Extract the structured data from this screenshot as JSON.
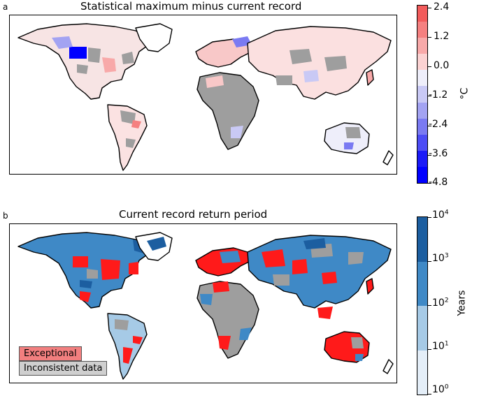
{
  "panel_a": {
    "letter": "a",
    "title": "Statistical maximum minus current record",
    "colorbar": {
      "label": "°C",
      "ticks": [
        "2.4",
        "1.2",
        "0.0",
        "-1.2",
        "-2.4",
        "-3.6",
        "-4.8"
      ],
      "colors": [
        "#f25b5b",
        "#f58080",
        "#f8a9a9",
        "#fbd2d2",
        "#eeeefa",
        "#c9c9f5",
        "#a3a3f2",
        "#7a7af2",
        "#4c4cf5",
        "#1a1af7",
        "#0000ff"
      ]
    }
  },
  "panel_b": {
    "letter": "b",
    "title": "Current record return period",
    "colorbar": {
      "label": "Years",
      "tick_base": "10",
      "tick_exponents": [
        "4",
        "3",
        "2",
        "1",
        "0"
      ],
      "colors": [
        "#1c5ea0",
        "#3f89c6",
        "#a6cae6",
        "#e4eef8"
      ]
    },
    "legend": {
      "exceptional": "Exceptional",
      "inconsistent": "Inconsistent data",
      "exceptional_color": "#f27f7f",
      "inconsistent_color": "#cfcfcf"
    }
  },
  "map_colors": {
    "land_gray": "#9e9e9e",
    "red": "#ff1a1a"
  }
}
